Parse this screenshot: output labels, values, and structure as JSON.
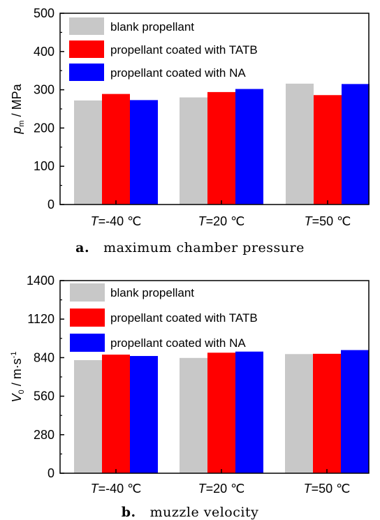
{
  "colors": {
    "blank": "#c8c8c8",
    "tatb": "#ff0000",
    "na": "#0000ff"
  },
  "chart_data": [
    {
      "type": "bar",
      "categories": [
        "T=-40 ℃",
        "T=20 ℃",
        "T=50 ℃"
      ],
      "category_parts": [
        {
          "italic": "T",
          "rest": "=-40 ℃"
        },
        {
          "italic": "T",
          "rest": "=20 ℃"
        },
        {
          "italic": "T",
          "rest": "=50 ℃"
        }
      ],
      "series": [
        {
          "name": "blank propellant",
          "values": [
            272,
            280,
            316
          ]
        },
        {
          "name": "propellant coated with TATB",
          "values": [
            289,
            294,
            286
          ]
        },
        {
          "name": "propellant coated with NA",
          "values": [
            273,
            302,
            315
          ]
        }
      ],
      "ylabel_italic": "p",
      "ylabel_sub": "m",
      "ylabel_rest": " / MPa",
      "ylim": [
        0,
        500
      ],
      "yticks": [
        "0",
        "100",
        "200",
        "300",
        "400",
        "500"
      ],
      "legend_position": "top-left",
      "caption_letter": "a.",
      "caption_text": "maximum chamber pressure"
    },
    {
      "type": "bar",
      "categories": [
        "T=-40 ℃",
        "T=20 ℃",
        "T=50 ℃"
      ],
      "category_parts": [
        {
          "italic": "T",
          "rest": "=-40 ℃"
        },
        {
          "italic": "T",
          "rest": "=20 ℃"
        },
        {
          "italic": "T",
          "rest": "=50 ℃"
        }
      ],
      "series": [
        {
          "name": "blank propellant",
          "values": [
            822,
            838,
            866
          ]
        },
        {
          "name": "propellant coated with TATB",
          "values": [
            862,
            876,
            868
          ]
        },
        {
          "name": "propellant coated with NA",
          "values": [
            852,
            884,
            895
          ]
        }
      ],
      "ylabel_italic": "V",
      "ylabel_sub": "0",
      "ylabel_rest": " / m·s",
      "ylabel_sup": "-1",
      "ylim": [
        0,
        1400
      ],
      "yticks": [
        "0",
        "280",
        "560",
        "840",
        "1120",
        "1400"
      ],
      "legend_position": "top-left",
      "caption_letter": "b.",
      "caption_text": "muzzle velocity"
    }
  ]
}
